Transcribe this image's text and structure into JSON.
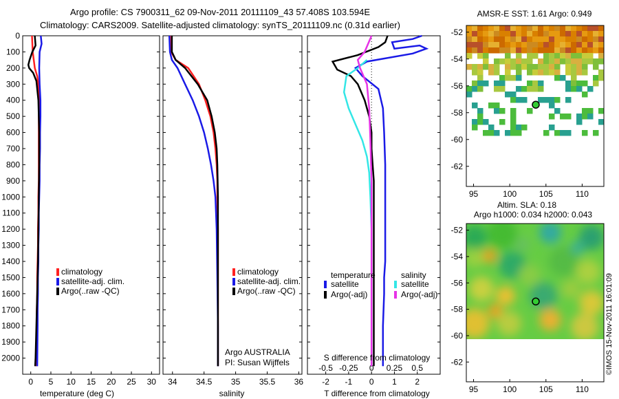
{
  "header": {
    "title_line1": "Argo profile: CS 7900311_62 09-Nov-2011 20111109_43 57.408S 103.594E",
    "title_line2": "Climatology: CARS2009. Satellite-adjusted climatology: synTS_20111109.nc (0.31d earlier)"
  },
  "stamp": "©IMOS 15-Nov-2011 16:01:09",
  "colors": {
    "climatology": "#ff2020",
    "satellite": "#1a1ae6",
    "argo": "#000000",
    "sal_satellite": "#33e6e6",
    "sal_argo": "#e633e6"
  },
  "chart_data": [
    {
      "type": "line",
      "xlabel": "temperature (deg C)",
      "ylim": [
        2100,
        0
      ],
      "xlim": [
        -2,
        32
      ],
      "xticks": [
        0,
        5,
        10,
        15,
        20,
        25,
        30
      ],
      "yticks": [
        0,
        100,
        200,
        300,
        400,
        500,
        600,
        700,
        800,
        900,
        1000,
        1100,
        1200,
        1300,
        1400,
        1500,
        1600,
        1700,
        1800,
        1900,
        2000
      ],
      "legend": [
        "climatology",
        "satellite-adj. clim.",
        "Argo(..raw -QC)"
      ],
      "series": [
        {
          "name": "climatology",
          "x": [
            0.3,
            0.5,
            1.0,
            1.6,
            1.9,
            2.0,
            2.0,
            2.0,
            2.0,
            2.0,
            2.0,
            1.9,
            1.9,
            1.8,
            1.8,
            1.7,
            1.6,
            1.6,
            1.5,
            1.5,
            1.4
          ],
          "y": [
            0,
            100,
            200,
            250,
            300,
            400,
            500,
            600,
            700,
            800,
            900,
            1000,
            1100,
            1200,
            1300,
            1400,
            1500,
            1600,
            1700,
            1800,
            2050
          ]
        },
        {
          "name": "satellite-adj. clim.",
          "x": [
            2.5,
            2.7,
            2.2,
            2.1,
            2.2,
            2.4,
            2.4,
            2.3,
            2.3,
            2.2,
            2.2,
            2.1,
            2.0,
            2.0,
            1.9,
            1.9,
            1.8,
            1.8,
            1.7,
            1.7,
            1.6
          ],
          "y": [
            0,
            50,
            100,
            200,
            300,
            400,
            500,
            600,
            700,
            800,
            900,
            1000,
            1100,
            1200,
            1300,
            1400,
            1500,
            1600,
            1700,
            1800,
            2050
          ]
        },
        {
          "name": "Argo(..raw -QC)",
          "x": [
            1.0,
            1.2,
            0.4,
            -0.3,
            -0.6,
            -0.4,
            0.6,
            1.4,
            1.9,
            2.1,
            2.1,
            2.0,
            1.9,
            1.8,
            1.7,
            1.6,
            1.5,
            1.4,
            1.3,
            1.2,
            1.1
          ],
          "y": [
            0,
            60,
            100,
            150,
            180,
            200,
            230,
            280,
            400,
            600,
            800,
            1000,
            1200,
            1400,
            1500,
            1600,
            1700,
            1800,
            1900,
            2000,
            2050
          ]
        }
      ]
    },
    {
      "type": "line",
      "xlabel": "salinity",
      "ylim": [
        2100,
        0
      ],
      "xlim": [
        33.85,
        36.05
      ],
      "xticks": [
        34,
        34.5,
        35,
        35.5,
        36
      ],
      "legend": [
        "climatology",
        "satellite-adj. clim.",
        "Argo(..raw -QC)"
      ],
      "annotation": [
        "Argo AUSTRALIA",
        "PI: Susan Wijffels"
      ],
      "series": [
        {
          "name": "climatology",
          "x": [
            33.98,
            33.98,
            34.05,
            34.25,
            34.42,
            34.52,
            34.6,
            34.65,
            34.68,
            34.7,
            34.71,
            34.71,
            34.72,
            34.72,
            34.72,
            34.72
          ],
          "y": [
            0,
            100,
            150,
            200,
            300,
            400,
            500,
            600,
            700,
            800,
            900,
            1000,
            1200,
            1500,
            1800,
            2050
          ]
        },
        {
          "name": "satellite-adj. clim.",
          "x": [
            33.95,
            33.96,
            33.99,
            34.08,
            34.2,
            34.32,
            34.42,
            34.5,
            34.56,
            34.61,
            34.65,
            34.68,
            34.7,
            34.71,
            34.72,
            34.72
          ],
          "y": [
            0,
            100,
            150,
            200,
            300,
            400,
            500,
            600,
            700,
            800,
            900,
            1000,
            1200,
            1500,
            1800,
            2050
          ]
        },
        {
          "name": "Argo(..raw -QC)",
          "x": [
            33.99,
            33.99,
            34.05,
            34.2,
            34.4,
            34.55,
            34.62,
            34.67,
            34.7,
            34.71,
            34.72,
            34.72,
            34.72,
            34.72,
            34.72
          ],
          "y": [
            0,
            100,
            150,
            200,
            300,
            400,
            500,
            600,
            700,
            800,
            1000,
            1200,
            1500,
            1800,
            2050
          ]
        }
      ]
    },
    {
      "type": "line",
      "xlabel": "T difference from climatology",
      "x2label": "S difference from climatology",
      "ylim": [
        2100,
        0
      ],
      "xlim": [
        -2.8,
        3.0
      ],
      "xticks": [
        -2,
        -1,
        0,
        1,
        2
      ],
      "x2ticks": [
        -0.5,
        -0.25,
        0,
        0.25,
        0.5
      ],
      "legend_left_title": "temperature",
      "legend_right_title": "salinity",
      "legend": [
        "satellite",
        "Argo(-adj)",
        "satellite",
        "Argo(-adj)"
      ],
      "series": [
        {
          "name": "temperature satellite",
          "x": [
            2.2,
            1.8,
            0.9,
            1.0,
            2.1,
            2.4,
            1.8,
            -0.2,
            -0.7,
            -0.4,
            0.3,
            0.5,
            0.55,
            0.6,
            0.6,
            0.6,
            0.6,
            0.6,
            0.6,
            0.55,
            0.55,
            0.5,
            0.5,
            0.5,
            0.5
          ],
          "y": [
            0,
            20,
            40,
            80,
            60,
            80,
            110,
            160,
            200,
            250,
            330,
            450,
            600,
            800,
            900,
            1000,
            1100,
            1200,
            1400,
            1500,
            1600,
            1800,
            1900,
            2000,
            2050
          ]
        },
        {
          "name": "temperature Argo(-adj)",
          "x": [
            0.7,
            0.6,
            0.3,
            -0.6,
            -1.7,
            -1.5,
            -0.9,
            -0.6,
            -0.3,
            -0.1,
            0.0,
            0.0,
            0.05,
            0.1,
            0.1,
            0.1,
            0.1,
            0.1,
            0.1,
            0.1,
            0.1,
            0.1
          ],
          "y": [
            0,
            40,
            70,
            120,
            160,
            210,
            250,
            300,
            400,
            500,
            600,
            700,
            800,
            900,
            1000,
            1200,
            1300,
            1500,
            1600,
            1800,
            1900,
            2050
          ]
        },
        {
          "name": "salinity satellite",
          "x": [
            -0.2,
            -0.6,
            -1.1,
            -1.2,
            -1.0,
            -0.7,
            -0.4,
            -0.2,
            -0.1,
            -0.05,
            0.0,
            0.0,
            0.0,
            0.0,
            0.0
          ],
          "y": [
            150,
            200,
            250,
            350,
            450,
            550,
            650,
            750,
            850,
            1000,
            1200,
            1400,
            1600,
            1800,
            2050
          ]
        },
        {
          "name": "salinity Argo(-adj)",
          "x": [
            0.0,
            -0.3,
            -0.6,
            -0.5,
            -0.2,
            -0.1,
            -0.05,
            0.0,
            0.0,
            0.0,
            0.0
          ],
          "y": [
            0,
            100,
            150,
            200,
            300,
            450,
            650,
            900,
            1200,
            1600,
            2050
          ]
        }
      ]
    },
    {
      "type": "heatmap",
      "title": "AMSR-E SST: 1.61 Argo: 0.949",
      "xlim": [
        94,
        113
      ],
      "ylim": [
        -63.5,
        -51.5
      ],
      "xticks": [
        95,
        100,
        105,
        110
      ],
      "yticks": [
        -52,
        -54,
        -56,
        -58,
        -60,
        -62
      ],
      "marker": [
        103.594,
        -57.408
      ]
    },
    {
      "type": "heatmap",
      "title_lines": [
        "Altim. SLA: 0.18",
        "Argo h1000: 0.034 h2000: 0.043"
      ],
      "xlim": [
        94,
        113
      ],
      "ylim": [
        -63.5,
        -51.5
      ],
      "xticks": [
        95,
        100,
        105,
        110
      ],
      "yticks": [
        -52,
        -54,
        -56,
        -58,
        -60,
        -62
      ],
      "marker": [
        103.594,
        -57.408
      ]
    }
  ]
}
